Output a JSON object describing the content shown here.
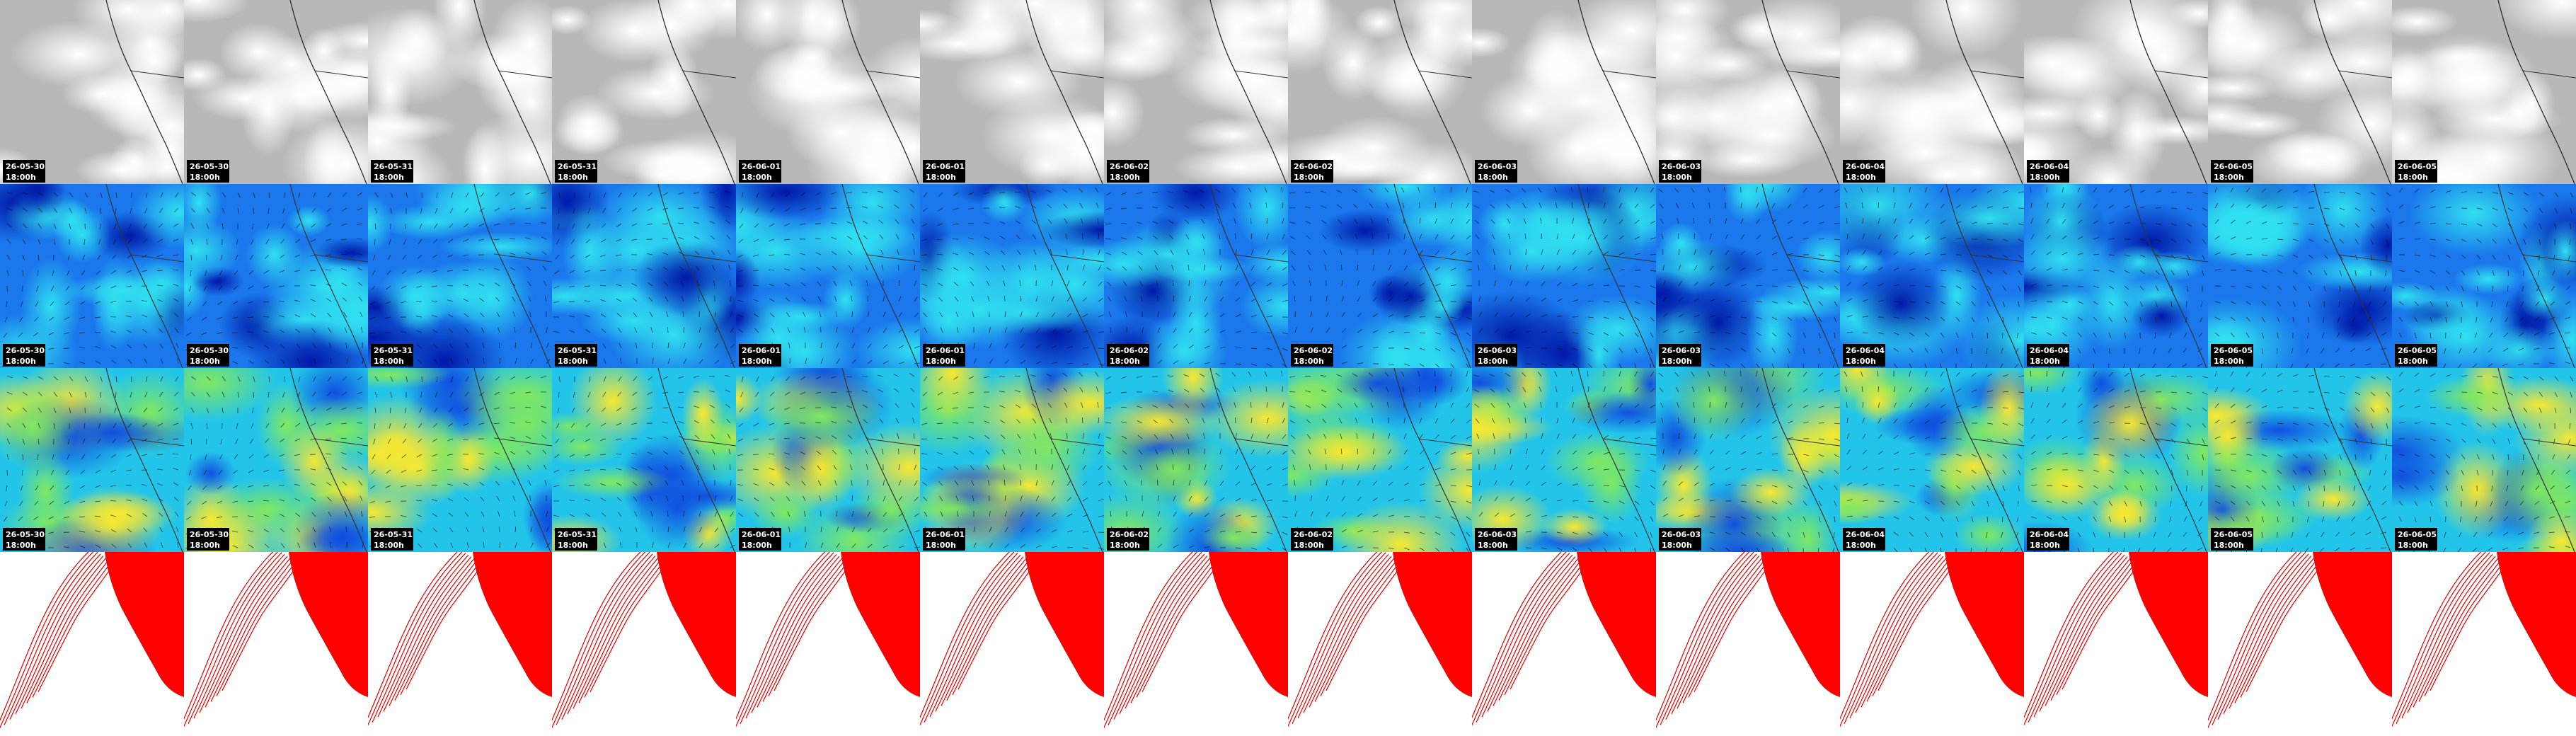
{
  "columns": [
    {
      "date": "26-05-30",
      "time": "18:00h"
    },
    {
      "date": "26-05-30",
      "time": "18:00h"
    },
    {
      "date": "26-05-31",
      "time": "18:00h"
    },
    {
      "date": "26-05-31",
      "time": "18:00h"
    },
    {
      "date": "26-06-01",
      "time": "18:00h"
    },
    {
      "date": "26-06-01",
      "time": "18:00h"
    },
    {
      "date": "26-06-02",
      "time": "18:00h"
    },
    {
      "date": "26-06-02",
      "time": "18:00h"
    },
    {
      "date": "26-06-03",
      "time": "18:00h"
    },
    {
      "date": "26-06-03",
      "time": "18:00h"
    },
    {
      "date": "26-06-04",
      "time": "18:00h"
    },
    {
      "date": "26-06-04",
      "time": "18:00h"
    },
    {
      "date": "26-06-05",
      "time": "18:00h"
    },
    {
      "date": "26-06-05",
      "time": "18:00h"
    }
  ]
}
